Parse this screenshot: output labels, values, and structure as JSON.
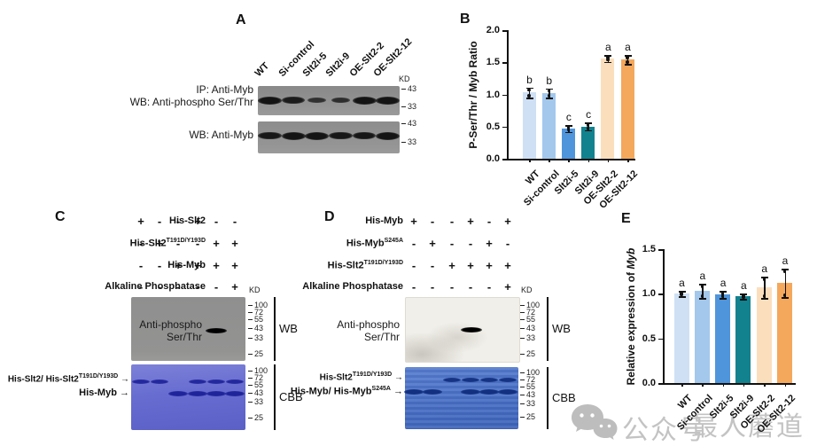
{
  "watermark": {
    "prefix": "公众号",
    "name": "最人蘑道"
  },
  "panel_a": {
    "label": "A",
    "lanes": [
      "WT",
      "Si-control",
      "Slt2i-5",
      "Slt2i-9",
      "OE-Slt2-2",
      "OE-Slt2-12"
    ],
    "kd": "KD",
    "blots": [
      {
        "label_lines": [
          "IP: Anti-Myb",
          "WB: Anti-phospho Ser/Thr"
        ],
        "markers": [
          "43",
          "33"
        ],
        "band_intensity": [
          1,
          0.85,
          0.5,
          0.55,
          1,
          1
        ]
      },
      {
        "label_lines": [
          "WB: Anti-Myb"
        ],
        "markers": [
          "43",
          "33"
        ],
        "band_intensity": [
          0.95,
          1,
          1,
          0.95,
          0.95,
          1
        ]
      }
    ]
  },
  "panel_c": {
    "label": "C",
    "conditions": [
      {
        "base": "His-Slt2",
        "sup": "",
        "values": [
          "+",
          "-",
          "-",
          "+",
          "-",
          "-"
        ]
      },
      {
        "base": "His-Slt2",
        "sup": "T191D/Y193D",
        "values": [
          "-",
          "+",
          "-",
          "-",
          "+",
          "+"
        ]
      },
      {
        "base": "His-Myb",
        "sup": "",
        "values": [
          "-",
          "-",
          "+",
          "+",
          "+",
          "+"
        ]
      },
      {
        "base": "Alkaline Phosphatase",
        "sup": "",
        "values": [
          "-",
          "-",
          "-",
          "-",
          "-",
          "+"
        ]
      }
    ],
    "kd": "KD",
    "wb": {
      "left_label_lines": [
        "Anti-phospho",
        "Ser/Thr"
      ],
      "bracket": "WB",
      "markers": [
        "100",
        "72",
        "55",
        "43",
        "33",
        "25"
      ],
      "band_lanes": [
        5
      ]
    },
    "cbb": {
      "bracket": "CBB",
      "markers": [
        "100",
        "72",
        "55",
        "43",
        "33",
        "25"
      ],
      "upper_label": {
        "base": "His-Slt2/ His-Slt2",
        "sup": "T191D/Y193D"
      },
      "lower_label": {
        "base": "His-Myb",
        "sup": ""
      },
      "upper_band_lanes": [
        1,
        2,
        4,
        5,
        6
      ],
      "lower_band_lanes": [
        3,
        4,
        5,
        6
      ]
    }
  },
  "panel_d": {
    "label": "D",
    "conditions": [
      {
        "base": "His-Myb",
        "sup": "",
        "values": [
          "+",
          "-",
          "-",
          "+",
          "-",
          "+"
        ]
      },
      {
        "base": "His-Myb",
        "sup": "S245A",
        "values": [
          "-",
          "+",
          "-",
          "-",
          "+",
          "-"
        ]
      },
      {
        "base": "His-Slt2",
        "sup": "T191D/Y193D",
        "values": [
          "-",
          "-",
          "+",
          "+",
          "+",
          "+"
        ]
      },
      {
        "base": "Alkaline Phosphatase",
        "sup": "",
        "values": [
          "-",
          "-",
          "-",
          "-",
          "-",
          "+"
        ]
      }
    ],
    "kd": "KD",
    "wb": {
      "left_label_lines": [
        "Anti-phospho",
        "Ser/Thr"
      ],
      "bracket": "WB",
      "markers": [
        "100",
        "72",
        "55",
        "43",
        "33",
        "25"
      ],
      "band_lanes": [
        4
      ]
    },
    "cbb": {
      "bracket": "CBB",
      "markers": [
        "100",
        "72",
        "55",
        "43",
        "33",
        "25"
      ],
      "upper_label": {
        "base": "His-Slt2",
        "sup": "T191D/Y193D"
      },
      "lower_label": {
        "base": "His-Myb/ His-Myb",
        "sup": "S245A"
      },
      "upper_band_lanes": [
        3,
        4,
        5,
        6
      ],
      "lower_band_lanes": [
        1,
        2,
        4,
        5,
        6
      ]
    }
  },
  "misc": {
    "arrow": "→"
  },
  "chart_data": [
    {
      "id": "chart-b",
      "panel_label": "B",
      "type": "bar",
      "categories": [
        "WT",
        "Si-control",
        "Slt2i-5",
        "Slt2i-9",
        "OE-Slt2-2",
        "OE-Slt2-12"
      ],
      "values": [
        1.03,
        1.02,
        0.47,
        0.5,
        1.56,
        1.54
      ],
      "errors": [
        0.08,
        0.07,
        0.05,
        0.06,
        0.05,
        0.07
      ],
      "sig_letters": [
        "b",
        "b",
        "c",
        "c",
        "a",
        "a"
      ],
      "bar_colors": [
        "#cfe0f4",
        "#a3c8ec",
        "#4f95dc",
        "#12828f",
        "#fbdfbd",
        "#f4a85b"
      ],
      "title": "",
      "ylabel": "P-Ser/Thr / Myb Ratio",
      "ylabel_italic": "",
      "ylim": [
        0,
        2.0
      ],
      "yticks": [
        "0.0",
        "0.5",
        "1.0",
        "1.5",
        "2.0"
      ],
      "grid": false,
      "legend": "none"
    },
    {
      "id": "chart-e",
      "panel_label": "E",
      "type": "bar",
      "categories": [
        "WT",
        "Si-control",
        "Slt2i-5",
        "Slt2i-9",
        "OE-Slt2-2",
        "OE-Slt2-12"
      ],
      "values": [
        1.0,
        1.03,
        0.99,
        0.97,
        1.07,
        1.12
      ],
      "errors": [
        0.03,
        0.08,
        0.04,
        0.03,
        0.12,
        0.16
      ],
      "sig_letters": [
        "a",
        "a",
        "a",
        "a",
        "a",
        "a"
      ],
      "bar_colors": [
        "#cfe0f4",
        "#a3c8ec",
        "#4f95dc",
        "#12828f",
        "#fbdfbd",
        "#f4a85b"
      ],
      "title": "",
      "ylabel": "Relative expression of ",
      "ylabel_italic": "Myb",
      "ylim": [
        0,
        1.5
      ],
      "yticks": [
        "0.0",
        "0.5",
        "1.0",
        "1.5"
      ],
      "grid": false,
      "legend": "none"
    }
  ]
}
